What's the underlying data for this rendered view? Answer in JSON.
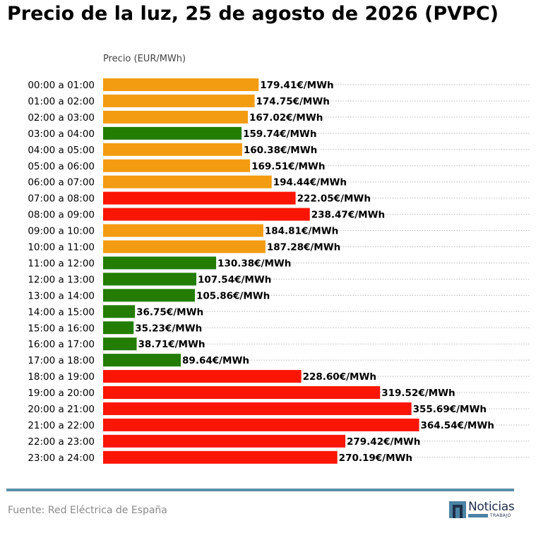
{
  "header": {
    "title": "Precio de la luz, 25 de agosto de 2026 (PVPC)"
  },
  "footer": {
    "source": "Fuente: Red Eléctrica de España",
    "logo_text": "Noticias",
    "logo_subtext": "TRABAJO"
  },
  "colors": {
    "high": "#fb1505",
    "medium": "#f39c12",
    "low": "#227d02",
    "rule": "#5b8fa8"
  },
  "chart_data": {
    "type": "bar",
    "orientation": "horizontal",
    "ylabel": "Precio (EUR/MWh)",
    "value_suffix": "€/MWh",
    "grid": "dotted horizontal",
    "categories": [
      "00:00 a 01:00",
      "01:00 a 02:00",
      "02:00 a 03:00",
      "03:00 a 04:00",
      "04:00 a 05:00",
      "05:00 a 06:00",
      "06:00 a 07:00",
      "07:00 a 08:00",
      "08:00 a 09:00",
      "09:00 a 10:00",
      "10:00 a 11:00",
      "11:00 a 12:00",
      "12:00 a 13:00",
      "13:00 a 14:00",
      "14:00 a 15:00",
      "15:00 a 16:00",
      "16:00 a 17:00",
      "17:00 a 18:00",
      "18:00 a 19:00",
      "19:00 a 20:00",
      "20:00 a 21:00",
      "21:00 a 22:00",
      "22:00 a 23:00",
      "23:00 a 24:00"
    ],
    "values": [
      179.41,
      174.75,
      167.02,
      159.74,
      160.38,
      169.51,
      194.44,
      222.05,
      238.47,
      184.81,
      187.28,
      130.38,
      107.54,
      105.86,
      36.75,
      35.23,
      38.71,
      89.64,
      228.6,
      319.52,
      355.69,
      364.54,
      279.42,
      270.19
    ],
    "levels": [
      "medium",
      "medium",
      "medium",
      "low",
      "medium",
      "medium",
      "medium",
      "high",
      "high",
      "medium",
      "medium",
      "low",
      "low",
      "low",
      "low",
      "low",
      "low",
      "low",
      "high",
      "high",
      "high",
      "high",
      "high",
      "high"
    ],
    "value_labels": [
      "179.41€/MWh",
      "174.75€/MWh",
      "167.02€/MWh",
      "159.74€/MWh",
      "160.38€/MWh",
      "169.51€/MWh",
      "194.44€/MWh",
      "222.05€/MWh",
      "238.47€/MWh",
      "184.81€/MWh",
      "187.28€/MWh",
      "130.38€/MWh",
      "107.54€/MWh",
      "105.86€/MWh",
      "36.75€/MWh",
      "35.23€/MWh",
      "38.71€/MWh",
      "89.64€/MWh",
      "228.60€/MWh",
      "319.52€/MWh",
      "355.69€/MWh",
      "364.54€/MWh",
      "279.42€/MWh",
      "270.19€/MWh"
    ]
  }
}
